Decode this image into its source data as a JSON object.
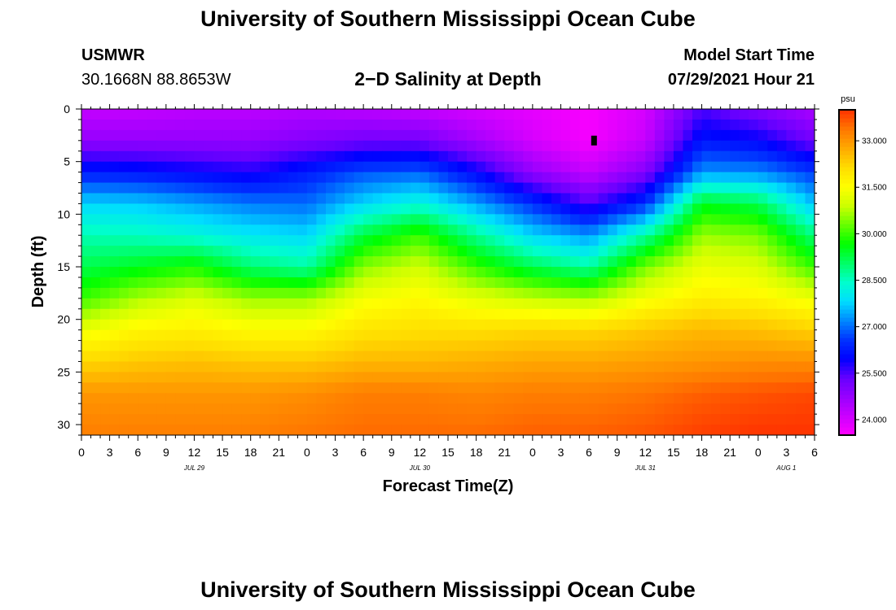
{
  "page": {
    "title_top": "University of Southern Mississippi Ocean Cube",
    "title_bottom": "University of Southern Mississippi Ocean Cube",
    "station": "USMWR",
    "coordinates": "30.1668N  88.8653W",
    "plot_title": "2−D Salinity at Depth",
    "model_label": "Model Start Time",
    "model_start": "07/29/2021 Hour 21"
  },
  "chart_data": {
    "type": "heatmap",
    "title": "2−D Salinity at Depth",
    "xlabel": "Forecast Time(Z)",
    "ylabel": "Depth (ft)",
    "x_range_hours": [
      0,
      78
    ],
    "x_ticks": [
      {
        "h": 0,
        "label": "0"
      },
      {
        "h": 3,
        "label": "3"
      },
      {
        "h": 6,
        "label": "6"
      },
      {
        "h": 9,
        "label": "9"
      },
      {
        "h": 12,
        "label": "12"
      },
      {
        "h": 15,
        "label": "15"
      },
      {
        "h": 18,
        "label": "18"
      },
      {
        "h": 21,
        "label": "21"
      },
      {
        "h": 24,
        "label": "0"
      },
      {
        "h": 27,
        "label": "3"
      },
      {
        "h": 30,
        "label": "6"
      },
      {
        "h": 33,
        "label": "9"
      },
      {
        "h": 36,
        "label": "12"
      },
      {
        "h": 39,
        "label": "15"
      },
      {
        "h": 42,
        "label": "18"
      },
      {
        "h": 45,
        "label": "21"
      },
      {
        "h": 48,
        "label": "0"
      },
      {
        "h": 51,
        "label": "3"
      },
      {
        "h": 54,
        "label": "6"
      },
      {
        "h": 57,
        "label": "9"
      },
      {
        "h": 60,
        "label": "12"
      },
      {
        "h": 63,
        "label": "15"
      },
      {
        "h": 66,
        "label": "18"
      },
      {
        "h": 69,
        "label": "21"
      },
      {
        "h": 72,
        "label": "0"
      },
      {
        "h": 75,
        "label": "3"
      },
      {
        "h": 78,
        "label": "6"
      }
    ],
    "date_labels": [
      {
        "h": 12,
        "label": "JUL 29"
      },
      {
        "h": 36,
        "label": "JUL 30"
      },
      {
        "h": 60,
        "label": "JUL 31"
      },
      {
        "h": 75,
        "label": "AUG 1"
      }
    ],
    "y_range_ft": [
      0,
      31
    ],
    "y_ticks": [
      0,
      5,
      10,
      15,
      20,
      25,
      30
    ],
    "colorbar": {
      "unit": "psu",
      "range": [
        23.5,
        34.0
      ],
      "ticks": [
        "24.000",
        "25.500",
        "27.000",
        "28.500",
        "30.000",
        "31.500",
        "33.000"
      ]
    },
    "salinity_grid": {
      "hours": [
        0,
        6,
        12,
        18,
        24,
        30,
        36,
        42,
        48,
        54,
        60,
        66,
        72,
        78
      ],
      "depths_ft": [
        0,
        3,
        6,
        9,
        12,
        15,
        18,
        21,
        24,
        27,
        31
      ],
      "values_psu": [
        [
          24.2,
          24.2,
          24.3,
          24.3,
          24.4,
          24.3,
          24.2,
          24.0,
          23.8,
          23.6,
          24.0,
          25.5,
          25.0,
          24.5
        ],
        [
          24.8,
          24.8,
          24.8,
          24.8,
          25.0,
          25.2,
          25.2,
          24.6,
          24.0,
          23.6,
          24.2,
          26.2,
          26.0,
          25.2
        ],
        [
          26.3,
          26.2,
          26.0,
          25.8,
          26.3,
          26.8,
          26.9,
          26.0,
          24.8,
          24.2,
          25.0,
          27.3,
          27.2,
          26.6
        ],
        [
          27.8,
          27.7,
          27.4,
          27.1,
          27.0,
          27.8,
          28.3,
          27.4,
          26.5,
          25.5,
          26.5,
          29.5,
          29.2,
          27.6
        ],
        [
          28.6,
          28.5,
          28.3,
          28.0,
          27.8,
          29.3,
          30.0,
          28.8,
          27.8,
          27.3,
          28.7,
          30.6,
          30.4,
          28.9
        ],
        [
          29.2,
          29.5,
          29.8,
          29.0,
          28.7,
          30.5,
          31.0,
          30.0,
          29.2,
          28.7,
          30.4,
          31.3,
          31.1,
          30.0
        ],
        [
          30.0,
          30.7,
          31.1,
          30.6,
          30.6,
          31.4,
          31.6,
          31.2,
          30.9,
          30.7,
          31.4,
          31.8,
          31.7,
          31.3
        ],
        [
          31.3,
          31.7,
          31.8,
          31.6,
          31.6,
          32.0,
          32.1,
          32.1,
          32.2,
          32.2,
          32.4,
          32.6,
          32.5,
          32.3
        ],
        [
          32.2,
          32.4,
          32.5,
          32.4,
          32.4,
          32.6,
          32.6,
          32.7,
          32.8,
          32.8,
          32.9,
          33.0,
          33.1,
          33.1
        ],
        [
          33.0,
          33.0,
          33.0,
          33.0,
          33.1,
          33.3,
          33.3,
          33.2,
          33.3,
          33.3,
          33.4,
          33.6,
          33.7,
          33.8
        ],
        [
          33.3,
          33.3,
          33.3,
          33.3,
          33.4,
          33.5,
          33.5,
          33.5,
          33.6,
          33.6,
          33.7,
          33.9,
          34.0,
          34.0
        ]
      ]
    },
    "marker": {
      "hour": 54.5,
      "depth_ft": 3
    },
    "colors": {
      "ramp": [
        "#ff00ff",
        "#cc00ff",
        "#9900ff",
        "#6600ff",
        "#0000ff",
        "#0033ff",
        "#0088ff",
        "#00ddff",
        "#00ffcc",
        "#00ff66",
        "#00ff00",
        "#66ff00",
        "#ccff00",
        "#ffff00",
        "#ffdd00",
        "#ffaa00",
        "#ff7700",
        "#ff3300"
      ]
    }
  }
}
